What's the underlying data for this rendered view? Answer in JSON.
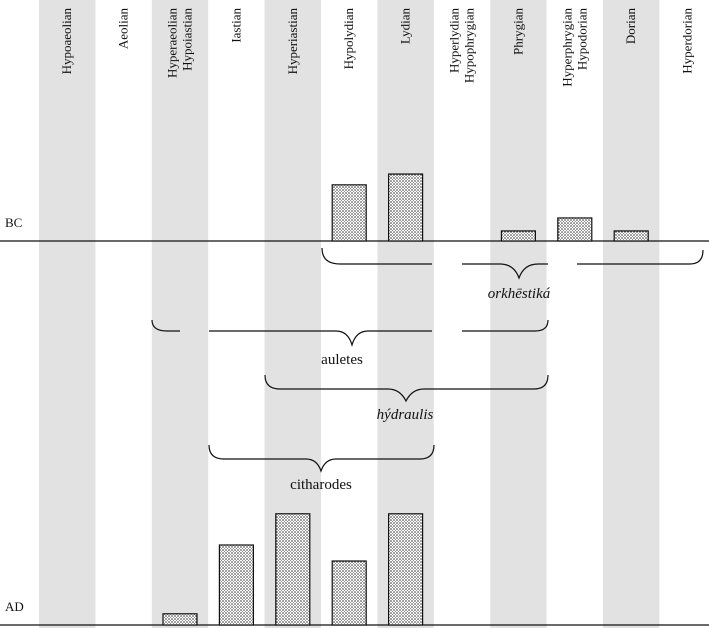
{
  "columns": [
    {
      "label1": "Hypoaeolian",
      "label2": "",
      "shaded": true
    },
    {
      "label1": "Aeolian",
      "label2": "",
      "shaded": false
    },
    {
      "label1": "Hyperaeolian",
      "label2": "Hypoiastian",
      "shaded": true
    },
    {
      "label1": "Iastian",
      "label2": "",
      "shaded": false
    },
    {
      "label1": "Hyperiastian",
      "label2": "",
      "shaded": true
    },
    {
      "label1": "Hypolydian",
      "label2": "",
      "shaded": false
    },
    {
      "label1": "Lydian",
      "label2": "",
      "shaded": true
    },
    {
      "label1": "Hyperlydian",
      "label2": "Hypophrygian",
      "shaded": false
    },
    {
      "label1": "Phrygian",
      "label2": "",
      "shaded": true
    },
    {
      "label1": "Hyperphrygian",
      "label2": "Hypodorian",
      "shaded": false
    },
    {
      "label1": "Dorian",
      "label2": "",
      "shaded": true
    },
    {
      "label1": "Hyperdorian",
      "label2": "",
      "shaded": false
    }
  ],
  "eras": {
    "bc": "BC",
    "ad": "AD"
  },
  "bc_bars": [
    {
      "column": 5,
      "value": 0.78
    },
    {
      "column": 6,
      "value": 0.93
    },
    {
      "column": 8,
      "value": 0.14
    },
    {
      "column": 9,
      "value": 0.32
    },
    {
      "column": 10,
      "value": 0.14
    }
  ],
  "ad_bars": [
    {
      "column": 2,
      "value": 0.14
    },
    {
      "column": 3,
      "value": 1.0
    },
    {
      "column": 4,
      "value": 1.39
    },
    {
      "column": 5,
      "value": 0.8
    },
    {
      "column": 6,
      "value": 1.39
    }
  ],
  "groups": {
    "orkhestika": "orkhēstiká",
    "auletes": "auletes",
    "hydraulis": "hýdraulis",
    "citharodes": "citharodes"
  }
}
